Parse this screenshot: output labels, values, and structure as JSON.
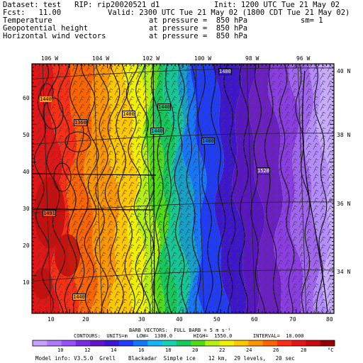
{
  "header": {
    "dataset": "Dataset: test   RIP: rip20020521 d1",
    "init": "Init: 1200 UTC Tue 21 May 02",
    "fcst": "Fcst:   11.00",
    "valid": "Valid: 2300 UTC Tue 21 May 02 (1800 CDT Tue 21 May 02)",
    "line3_left": "Temperature",
    "line3_mid": "at pressure =  850 hPa",
    "line3_right": "sm= 1",
    "line4_left": "Geopotential height",
    "line4_mid": "at pressure =  850 hPa",
    "line5_left": "Horizontal wind vectors",
    "line5_mid": "at pressure =  850 hPa"
  },
  "map": {
    "lon_labels": [
      "106 W",
      "104 W",
      "102 W",
      "100 W",
      "98 W",
      "96 W"
    ],
    "lat_labels": [
      "40 N",
      "38 N",
      "36 N",
      "34 N"
    ],
    "x_ticks": [
      "10",
      "20",
      "30",
      "40",
      "50",
      "60",
      "70",
      "80"
    ],
    "y_ticks": [
      "10",
      "20",
      "30",
      "40",
      "50",
      "60"
    ],
    "height_labels": [
      "1440",
      "1400",
      "1360",
      "1440",
      "1440",
      "1480",
      "1520",
      "1440",
      "1480"
    ]
  },
  "info": {
    "barb_line": "BARB VECTORS:  FULL BARB = 5 m s⁻¹",
    "contour_line": "CONTOURS:  UNITS=m   LOW=  1300.0       HIGH=  1550.0       INTERVAL=  10.000"
  },
  "colorbar": {
    "ticks": [
      "10",
      "12",
      "14",
      "16",
      "18",
      "20",
      "22",
      "24",
      "26",
      "28"
    ],
    "unit": "°C",
    "colors": [
      "#c8a0ff",
      "#b078ff",
      "#9650ff",
      "#7d28e6",
      "#6414c8",
      "#3c14d2",
      "#1e3cff",
      "#1478ff",
      "#14b4ff",
      "#14d2b4",
      "#14c85a",
      "#50dc14",
      "#b4f014",
      "#f0f000",
      "#ffc800",
      "#ff9600",
      "#ff6400",
      "#ff2d14",
      "#e61414",
      "#c80a0a",
      "#960000"
    ]
  },
  "footer": {
    "model_info": "Model info: V3.5.0  Grell    Blackadar  Simple ice    12 km,  29 levels,   20 sec"
  }
}
